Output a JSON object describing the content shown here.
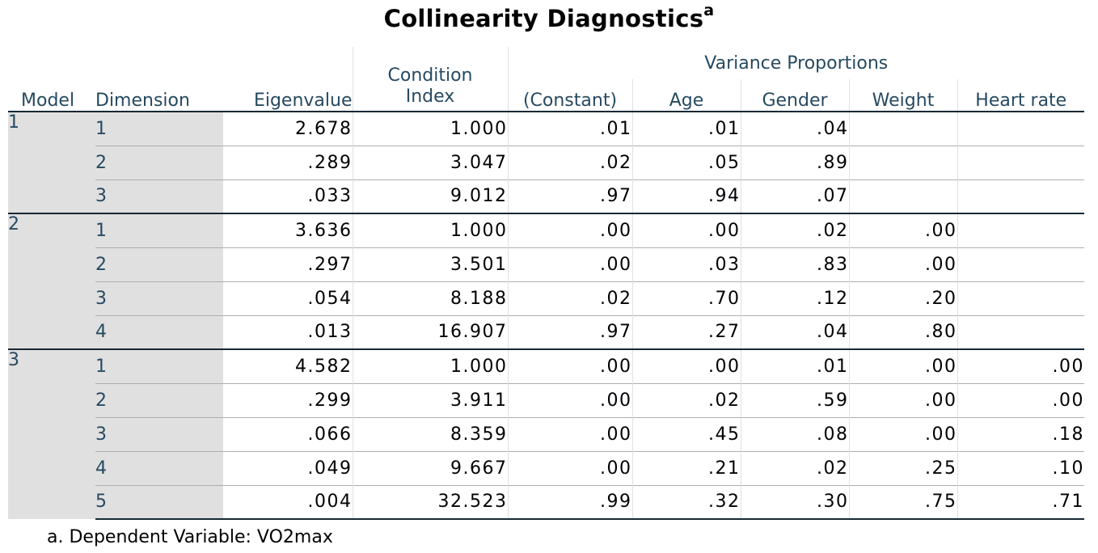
{
  "title": "Collinearity Diagnostics",
  "title_sup": "a",
  "headers": {
    "model": "Model",
    "dimension": "Dimension",
    "eigenvalue": "Eigenvalue",
    "condition_index_line1": "Condition",
    "condition_index_line2": "Index",
    "variance_proportions": "Variance Proportions",
    "constant": "(Constant)",
    "age": "Age",
    "gender": "Gender",
    "weight": "Weight",
    "heart_rate": "Heart rate"
  },
  "rows": [
    {
      "model": "1",
      "dim": "1",
      "eig": "2.678",
      "ci": "1.000",
      "const": ".01",
      "age": ".01",
      "gender": ".04",
      "weight": "",
      "hr": ""
    },
    {
      "model": "",
      "dim": "2",
      "eig": ".289",
      "ci": "3.047",
      "const": ".02",
      "age": ".05",
      "gender": ".89",
      "weight": "",
      "hr": ""
    },
    {
      "model": "",
      "dim": "3",
      "eig": ".033",
      "ci": "9.012",
      "const": ".97",
      "age": ".94",
      "gender": ".07",
      "weight": "",
      "hr": ""
    },
    {
      "model": "2",
      "dim": "1",
      "eig": "3.636",
      "ci": "1.000",
      "const": ".00",
      "age": ".00",
      "gender": ".02",
      "weight": ".00",
      "hr": ""
    },
    {
      "model": "",
      "dim": "2",
      "eig": ".297",
      "ci": "3.501",
      "const": ".00",
      "age": ".03",
      "gender": ".83",
      "weight": ".00",
      "hr": ""
    },
    {
      "model": "",
      "dim": "3",
      "eig": ".054",
      "ci": "8.188",
      "const": ".02",
      "age": ".70",
      "gender": ".12",
      "weight": ".20",
      "hr": ""
    },
    {
      "model": "",
      "dim": "4",
      "eig": ".013",
      "ci": "16.907",
      "const": ".97",
      "age": ".27",
      "gender": ".04",
      "weight": ".80",
      "hr": ""
    },
    {
      "model": "3",
      "dim": "1",
      "eig": "4.582",
      "ci": "1.000",
      "const": ".00",
      "age": ".00",
      "gender": ".01",
      "weight": ".00",
      "hr": ".00"
    },
    {
      "model": "",
      "dim": "2",
      "eig": ".299",
      "ci": "3.911",
      "const": ".00",
      "age": ".02",
      "gender": ".59",
      "weight": ".00",
      "hr": ".00"
    },
    {
      "model": "",
      "dim": "3",
      "eig": ".066",
      "ci": "8.359",
      "const": ".00",
      "age": ".45",
      "gender": ".08",
      "weight": ".00",
      "hr": ".18"
    },
    {
      "model": "",
      "dim": "4",
      "eig": ".049",
      "ci": "9.667",
      "const": ".00",
      "age": ".21",
      "gender": ".02",
      "weight": ".25",
      "hr": ".10"
    },
    {
      "model": "",
      "dim": "5",
      "eig": ".004",
      "ci": "32.523",
      "const": ".99",
      "age": ".32",
      "gender": ".30",
      "weight": ".75",
      "hr": ".71"
    }
  ],
  "footnote": "a. Dependent Variable: VO2max"
}
